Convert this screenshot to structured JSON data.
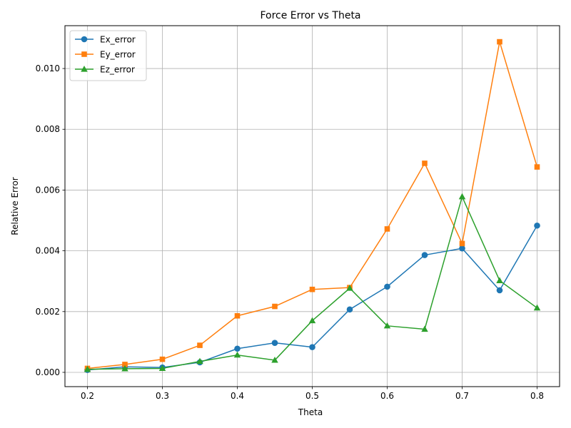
{
  "chart_data": {
    "type": "line",
    "title": "Force Error vs Theta",
    "xlabel": "Theta",
    "ylabel": "Relative Error",
    "x": [
      0.2,
      0.25,
      0.3,
      0.35,
      0.4,
      0.45,
      0.5,
      0.55,
      0.6,
      0.65,
      0.7,
      0.75,
      0.8
    ],
    "xlim": [
      0.17,
      0.83
    ],
    "ylim": [
      -0.00047,
      0.01141
    ],
    "xticks": [
      "0.2",
      "0.3",
      "0.4",
      "0.5",
      "0.6",
      "0.7",
      "0.8"
    ],
    "xtick_values": [
      0.2,
      0.3,
      0.4,
      0.5,
      0.6,
      0.7,
      0.8
    ],
    "yticks": [
      "0.000",
      "0.002",
      "0.004",
      "0.006",
      "0.008",
      "0.010"
    ],
    "ytick_values": [
      0.0,
      0.002,
      0.004,
      0.006,
      0.008,
      0.01
    ],
    "grid": true,
    "legend_position": "top-left",
    "series": [
      {
        "name": "Ex_error",
        "color": "#1f77b4",
        "marker": "circle",
        "values": [
          8e-05,
          0.00018,
          0.00016,
          0.00033,
          0.00078,
          0.00097,
          0.00083,
          0.00207,
          0.00282,
          0.00386,
          0.00408,
          0.0027,
          0.00483
        ]
      },
      {
        "name": "Ey_error",
        "color": "#ff7f0e",
        "marker": "square",
        "values": [
          0.00013,
          0.00026,
          0.00043,
          0.00089,
          0.00186,
          0.00217,
          0.00273,
          0.00279,
          0.00472,
          0.00688,
          0.00424,
          0.01088,
          0.00676
        ]
      },
      {
        "name": "Ez_error",
        "color": "#2ca02c",
        "marker": "triangle",
        "values": [
          0.0001,
          0.00012,
          0.00013,
          0.00036,
          0.00057,
          0.0004,
          0.0017,
          0.00277,
          0.00153,
          0.00142,
          0.00578,
          0.00302,
          0.00212
        ]
      }
    ]
  }
}
